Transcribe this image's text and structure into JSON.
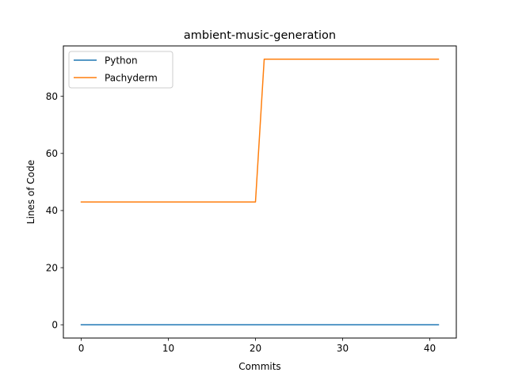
{
  "chart_data": {
    "type": "line",
    "title": "ambient-music-generation",
    "xlabel": "Commits",
    "ylabel": "Lines of Code",
    "xlim": [
      -2.05,
      43.05
    ],
    "ylim": [
      -4.65,
      97.65
    ],
    "xticks": [
      0,
      10,
      20,
      30,
      40
    ],
    "yticks": [
      0,
      20,
      40,
      60,
      80
    ],
    "grid": false,
    "legend_position": "top-left",
    "series": [
      {
        "name": "Python",
        "color": "#1f77b4",
        "points": [
          [
            0,
            0
          ],
          [
            41,
            0
          ]
        ]
      },
      {
        "name": "Pachyderm",
        "color": "#ff7f0e",
        "points": [
          [
            0,
            43
          ],
          [
            20,
            43
          ],
          [
            21,
            93
          ],
          [
            41,
            93
          ]
        ]
      }
    ]
  }
}
